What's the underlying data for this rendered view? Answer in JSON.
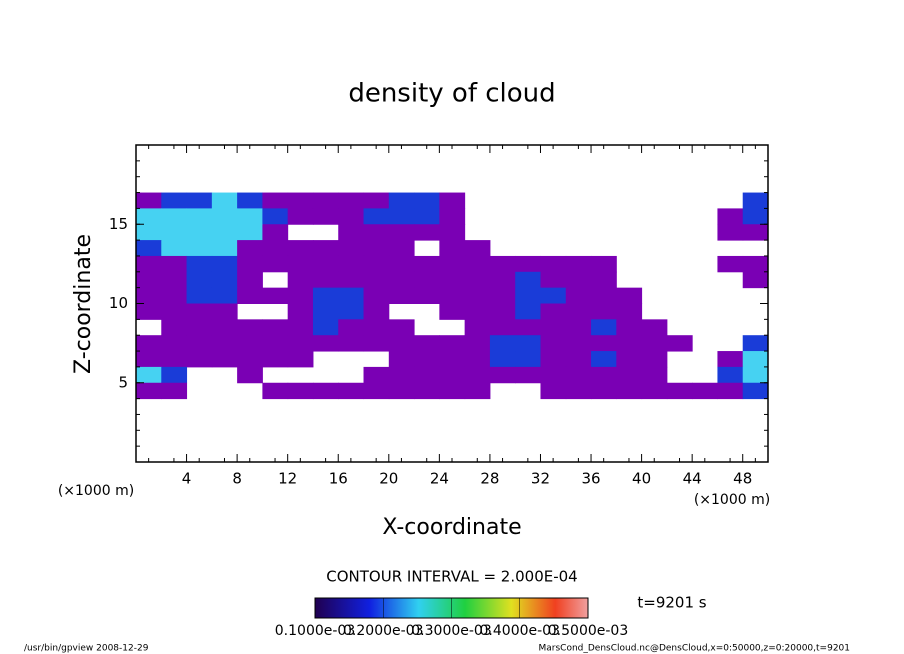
{
  "chart_data": {
    "type": "heatmap",
    "title": "density of cloud",
    "x_label": "X-coordinate",
    "y_label": "Z-coordinate",
    "x_units": "(×1000 m)",
    "y_units": "(×1000 m)",
    "xlim": [
      0,
      50
    ],
    "ylim": [
      0,
      20
    ],
    "xticks": [
      4,
      8,
      12,
      16,
      20,
      24,
      28,
      32,
      36,
      40,
      44,
      48
    ],
    "yticks": [
      5,
      10,
      15
    ],
    "x": [
      1,
      3,
      5,
      7,
      9,
      11,
      13,
      15,
      17,
      19,
      21,
      23,
      25,
      27,
      29,
      31,
      33,
      35,
      37,
      39,
      41,
      43,
      45,
      47,
      49
    ],
    "y": [
      16.5,
      15.5,
      14.5,
      13.5,
      12.5,
      11.5,
      10.5,
      9.5,
      8.5,
      7.5,
      6.5,
      5.5,
      4.5
    ],
    "z": [
      [
        0.0001,
        0.0002,
        0.0002,
        0.0003,
        0.0002,
        0.0001,
        0.0001,
        0.0001,
        0.0001,
        0.0001,
        0.0002,
        0.0002,
        0.0001,
        null,
        null,
        null,
        null,
        null,
        null,
        null,
        null,
        null,
        null,
        null,
        0.0002
      ],
      [
        0.0003,
        0.0003,
        0.0003,
        0.0003,
        0.0003,
        0.0002,
        0.0001,
        0.0001,
        0.0001,
        0.0002,
        0.0002,
        0.0002,
        0.0001,
        null,
        null,
        null,
        null,
        null,
        null,
        null,
        null,
        null,
        null,
        0.0001,
        0.0002
      ],
      [
        0.0003,
        0.0003,
        0.0003,
        0.0003,
        0.0003,
        0.0001,
        null,
        null,
        0.0001,
        0.0001,
        0.0001,
        0.0001,
        0.0001,
        null,
        null,
        null,
        null,
        null,
        null,
        null,
        null,
        null,
        null,
        0.0001,
        0.0001
      ],
      [
        0.0002,
        0.0003,
        0.0003,
        0.0003,
        0.0001,
        0.0001,
        0.0001,
        0.0001,
        0.0001,
        0.0001,
        0.0001,
        null,
        0.0001,
        0.0001,
        null,
        null,
        null,
        null,
        null,
        null,
        null,
        null,
        null,
        null,
        null
      ],
      [
        0.0001,
        0.0001,
        0.0002,
        0.0002,
        0.0001,
        0.0001,
        0.0001,
        0.0001,
        0.0001,
        0.0001,
        0.0001,
        0.0001,
        0.0001,
        0.0001,
        0.0001,
        0.0001,
        0.0001,
        0.0001,
        0.0001,
        null,
        null,
        null,
        null,
        0.0001,
        0.0001
      ],
      [
        0.0001,
        0.0001,
        0.0002,
        0.0002,
        0.0001,
        null,
        0.0001,
        0.0001,
        0.0001,
        0.0001,
        0.0001,
        0.0001,
        0.0001,
        0.0001,
        0.0001,
        0.0002,
        0.0001,
        0.0001,
        0.0001,
        null,
        null,
        null,
        null,
        null,
        0.0001
      ],
      [
        0.0001,
        0.0001,
        0.0002,
        0.0002,
        0.0001,
        0.0001,
        0.0001,
        0.0002,
        0.0002,
        0.0001,
        0.0001,
        0.0001,
        0.0001,
        0.0001,
        0.0001,
        0.0002,
        0.0002,
        0.0001,
        0.0001,
        0.0001,
        null,
        null,
        null,
        null,
        null
      ],
      [
        0.0001,
        0.0001,
        0.0001,
        0.0001,
        null,
        null,
        0.0001,
        0.0002,
        0.0002,
        0.0001,
        null,
        null,
        0.0001,
        0.0001,
        0.0001,
        0.0002,
        0.0001,
        0.0001,
        0.0001,
        0.0001,
        null,
        null,
        null,
        null,
        null
      ],
      [
        null,
        0.0001,
        0.0001,
        0.0001,
        0.0001,
        0.0001,
        0.0001,
        0.0002,
        0.0001,
        0.0001,
        0.0001,
        null,
        null,
        0.0001,
        0.0001,
        0.0001,
        0.0001,
        0.0001,
        0.0002,
        0.0001,
        0.0001,
        null,
        null,
        null,
        null
      ],
      [
        0.0001,
        0.0001,
        0.0001,
        0.0001,
        0.0001,
        0.0001,
        0.0001,
        0.0001,
        0.0001,
        0.0001,
        0.0001,
        0.0001,
        0.0001,
        0.0001,
        0.0002,
        0.0002,
        0.0001,
        0.0001,
        0.0001,
        0.0001,
        0.0001,
        0.0001,
        null,
        null,
        0.0002
      ],
      [
        0.0001,
        0.0001,
        0.0001,
        0.0001,
        0.0001,
        0.0001,
        0.0001,
        null,
        null,
        null,
        0.0001,
        0.0001,
        0.0001,
        0.0001,
        0.0002,
        0.0002,
        0.0001,
        0.0001,
        0.0002,
        0.0001,
        0.0001,
        null,
        null,
        0.0001,
        0.0003
      ],
      [
        0.0003,
        0.0002,
        null,
        null,
        0.0001,
        null,
        null,
        null,
        null,
        0.0001,
        0.0001,
        0.0001,
        0.0001,
        0.0001,
        0.0001,
        0.0001,
        0.0001,
        0.0001,
        0.0001,
        0.0001,
        0.0001,
        null,
        null,
        0.0002,
        0.0003
      ],
      [
        0.0001,
        0.0001,
        null,
        null,
        null,
        0.0001,
        0.0001,
        0.0001,
        0.0001,
        0.0001,
        0.0001,
        0.0001,
        0.0001,
        0.0001,
        null,
        null,
        0.0001,
        0.0001,
        0.0001,
        0.0001,
        0.0001,
        0.0001,
        0.0001,
        0.0001,
        0.0002
      ]
    ],
    "colors": {
      "low": "#7a00b4",
      "mid": "#1a3cd8",
      "high": "#46d2f2"
    },
    "contour_interval": "CONTOUR INTERVAL = 2.000E-04",
    "time_label": "t=9201 s",
    "colorbar": {
      "lim": [
        0.0001,
        0.0005
      ],
      "ticks": [
        {
          "value": 0.0001,
          "label": "0.1000e-03"
        },
        {
          "value": 0.0002,
          "label": "0.2000e-03"
        },
        {
          "value": 0.0003,
          "label": "0.3000e-03"
        },
        {
          "value": 0.0004,
          "label": "0.4000e-03"
        },
        {
          "value": 0.0005,
          "label": "0.5000e-03"
        }
      ]
    },
    "footer_left": "/usr/bin/gpview  2008-12-29",
    "footer_right": "MarsCond_DensCloud.nc@DensCloud,x=0:50000,z=0:20000,t=9201"
  }
}
